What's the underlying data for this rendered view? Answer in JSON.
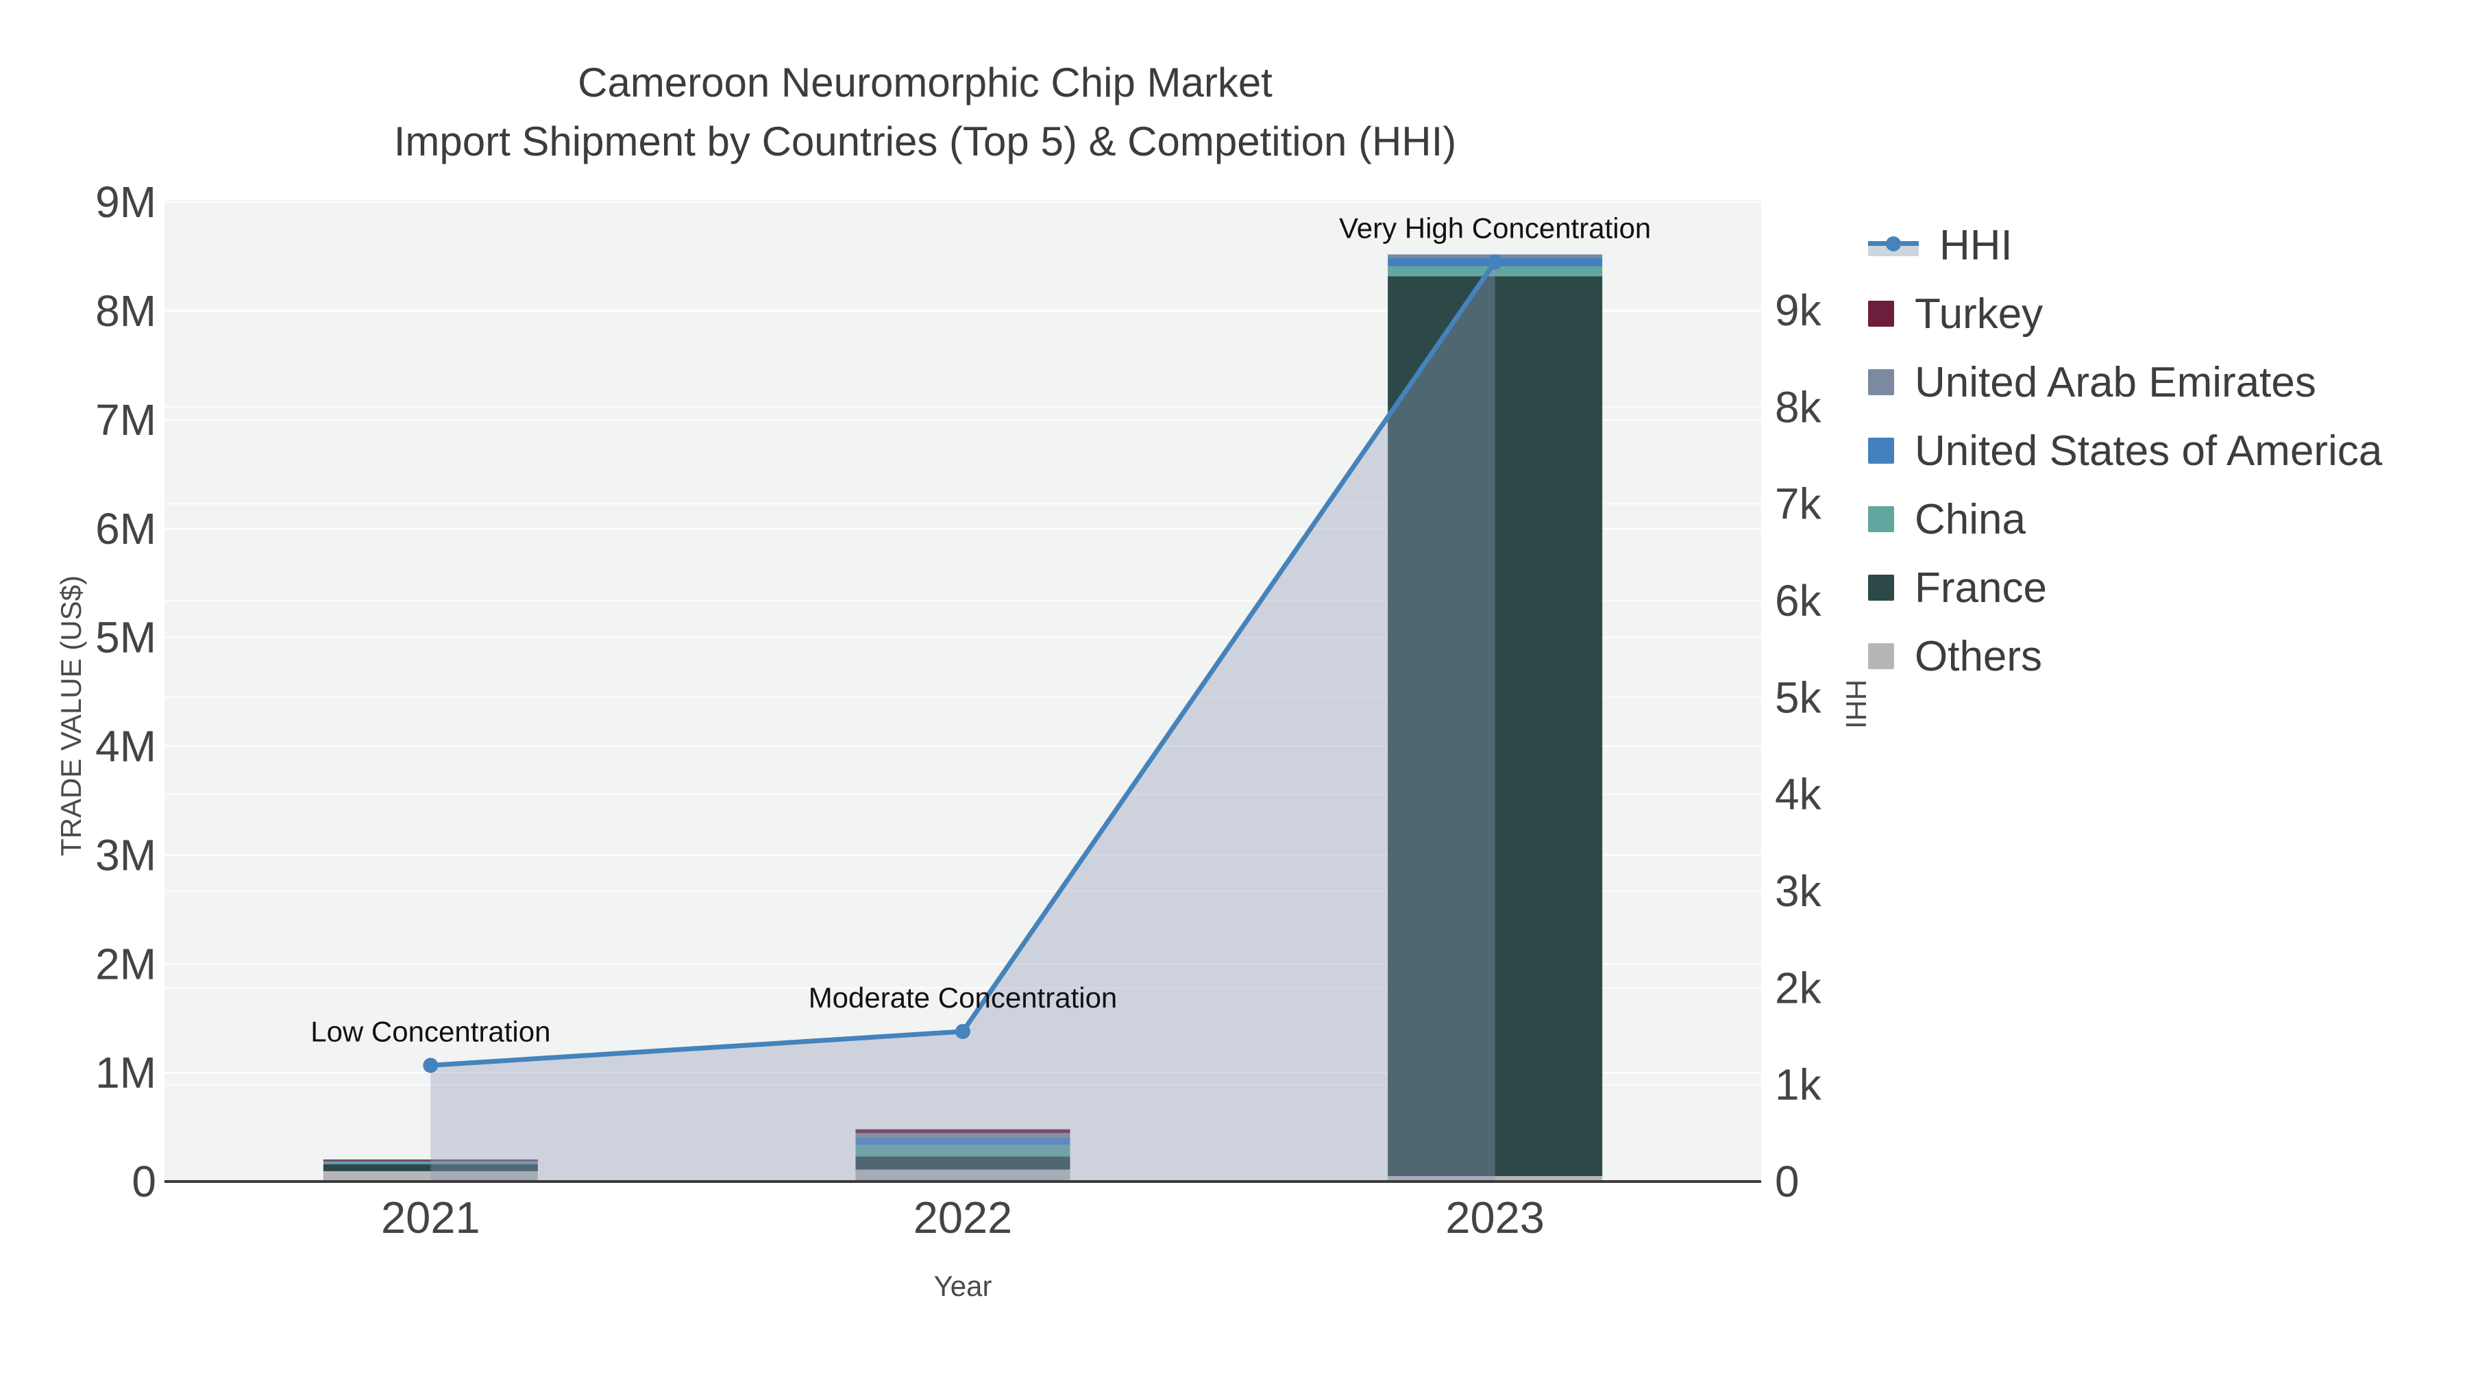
{
  "title": {
    "line1": "Cameroon Neuromorphic Chip Market",
    "line2": "Import Shipment by Countries (Top 5) & Competition (HHI)"
  },
  "colors": {
    "plot_bg": "#f2f3f3",
    "gridline": "#ffffff",
    "axis_line": "#3a3a3a",
    "tick_text": "#444444",
    "axis_title_text": "#4a4a4a",
    "annotation_text": "#111111",
    "legend_text": "#3d3d3d",
    "hhi_line": "#4483bb",
    "hhi_area_fill": "rgba(140,155,185,0.37)",
    "hhi_legend_band": "#cdd5de"
  },
  "chart_data": {
    "type": "bar",
    "subtype": "stacked-bar-with-line",
    "categories": [
      "2021",
      "2022",
      "2023"
    ],
    "xlabel": "Year",
    "series": [
      {
        "name": "Others",
        "color": "#b4b6b8",
        "values": [
          95000,
          110000,
          50000
        ]
      },
      {
        "name": "France",
        "color": "#2c4948",
        "values": [
          65000,
          120000,
          8270000
        ]
      },
      {
        "name": "China",
        "color": "#63a6a0",
        "values": [
          15000,
          105000,
          90000
        ]
      },
      {
        "name": "United States of America",
        "color": "#4480bd",
        "values": [
          12000,
          70000,
          80000
        ]
      },
      {
        "name": "United Arab Emirates",
        "color": "#7b8aa0",
        "values": [
          5000,
          40000,
          30000
        ]
      },
      {
        "name": "Turkey",
        "color": "#6d1e3d",
        "values": [
          10000,
          35000,
          0
        ]
      }
    ],
    "line_series": {
      "name": "HHI",
      "values": [
        1200,
        1550,
        9500
      ],
      "axis": "right",
      "fill": "tozeroy"
    },
    "left_axis": {
      "title": "TRADE VALUE (US$)",
      "max": 9020000,
      "ticks": [
        {
          "value": 0,
          "label": "0"
        },
        {
          "value": 1000000,
          "label": "1M"
        },
        {
          "value": 2000000,
          "label": "2M"
        },
        {
          "value": 3000000,
          "label": "3M"
        },
        {
          "value": 4000000,
          "label": "4M"
        },
        {
          "value": 5000000,
          "label": "5M"
        },
        {
          "value": 6000000,
          "label": "6M"
        },
        {
          "value": 7000000,
          "label": "7M"
        },
        {
          "value": 8000000,
          "label": "8M"
        },
        {
          "value": 9000000,
          "label": "9M"
        }
      ]
    },
    "right_axis": {
      "title": "HHI",
      "max": 10140,
      "ticks": [
        {
          "value": 0,
          "label": "0"
        },
        {
          "value": 1000,
          "label": "1k"
        },
        {
          "value": 2000,
          "label": "2k"
        },
        {
          "value": 3000,
          "label": "3k"
        },
        {
          "value": 4000,
          "label": "4k"
        },
        {
          "value": 5000,
          "label": "5k"
        },
        {
          "value": 6000,
          "label": "6k"
        },
        {
          "value": 7000,
          "label": "7k"
        },
        {
          "value": 8000,
          "label": "8k"
        },
        {
          "value": 9000,
          "label": "9k"
        }
      ]
    },
    "annotations": [
      {
        "category_index": 0,
        "text": "Low Concentration"
      },
      {
        "category_index": 1,
        "text": "Moderate Concentration"
      },
      {
        "category_index": 2,
        "text": "Very High Concentration"
      }
    ],
    "legend": [
      "HHI",
      "Turkey",
      "United Arab Emirates",
      "United States of America",
      "China",
      "France",
      "Others"
    ],
    "grid": true,
    "legend_position": "right"
  }
}
